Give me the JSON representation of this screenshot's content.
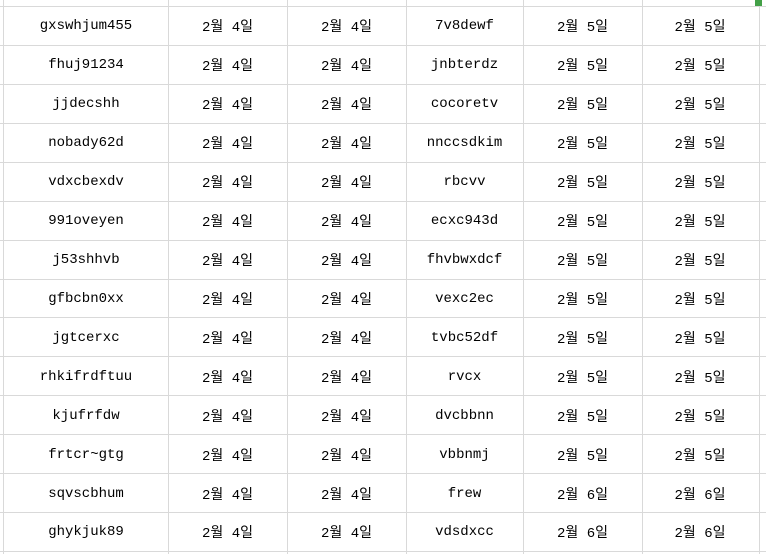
{
  "table": {
    "rows": [
      [
        "gxswhjum455",
        "2월 4일",
        "2월 4일",
        "7v8dewf",
        "2월 5일",
        "2월 5일"
      ],
      [
        "fhuj91234",
        "2월 4일",
        "2월 4일",
        "jnbterdz",
        "2월 5일",
        "2월 5일"
      ],
      [
        "jjdecshh",
        "2월 4일",
        "2월 4일",
        "cocoretv",
        "2월 5일",
        "2월 5일"
      ],
      [
        "nobady62d",
        "2월 4일",
        "2월 4일",
        "nnccsdkim",
        "2월 5일",
        "2월 5일"
      ],
      [
        "vdxcbexdv",
        "2월 4일",
        "2월 4일",
        "rbcvv",
        "2월 5일",
        "2월 5일"
      ],
      [
        "991oveyen",
        "2월 4일",
        "2월 4일",
        "ecxc943d",
        "2월 5일",
        "2월 5일"
      ],
      [
        "j53shhvb",
        "2월 4일",
        "2월 4일",
        "fhvbwxdcf",
        "2월 5일",
        "2월 5일"
      ],
      [
        "gfbcbn0xx",
        "2월 4일",
        "2월 4일",
        "vexc2ec",
        "2월 5일",
        "2월 5일"
      ],
      [
        "jgtcerxc",
        "2월 4일",
        "2월 4일",
        "tvbc52df",
        "2월 5일",
        "2월 5일"
      ],
      [
        "rhkifrdftuu",
        "2월 4일",
        "2월 4일",
        "rvcx",
        "2월 5일",
        "2월 5일"
      ],
      [
        "kjufrfdw",
        "2월 4일",
        "2월 4일",
        "dvcbbnn",
        "2월 5일",
        "2월 5일"
      ],
      [
        "frtcr~gtg",
        "2월 4일",
        "2월 4일",
        "vbbnmj",
        "2월 5일",
        "2월 5일"
      ],
      [
        "sqvscbhum",
        "2월 4일",
        "2월 4일",
        "frew",
        "2월 6일",
        "2월 6일"
      ],
      [
        "ghykjuk89",
        "2월 4일",
        "2월 4일",
        "vdsdxcc",
        "2월 6일",
        "2월 6일"
      ]
    ]
  },
  "colors": {
    "grid_line": "#d9d9d9",
    "fill_handle": "#43a047",
    "text": "#000000",
    "background": "#ffffff"
  }
}
